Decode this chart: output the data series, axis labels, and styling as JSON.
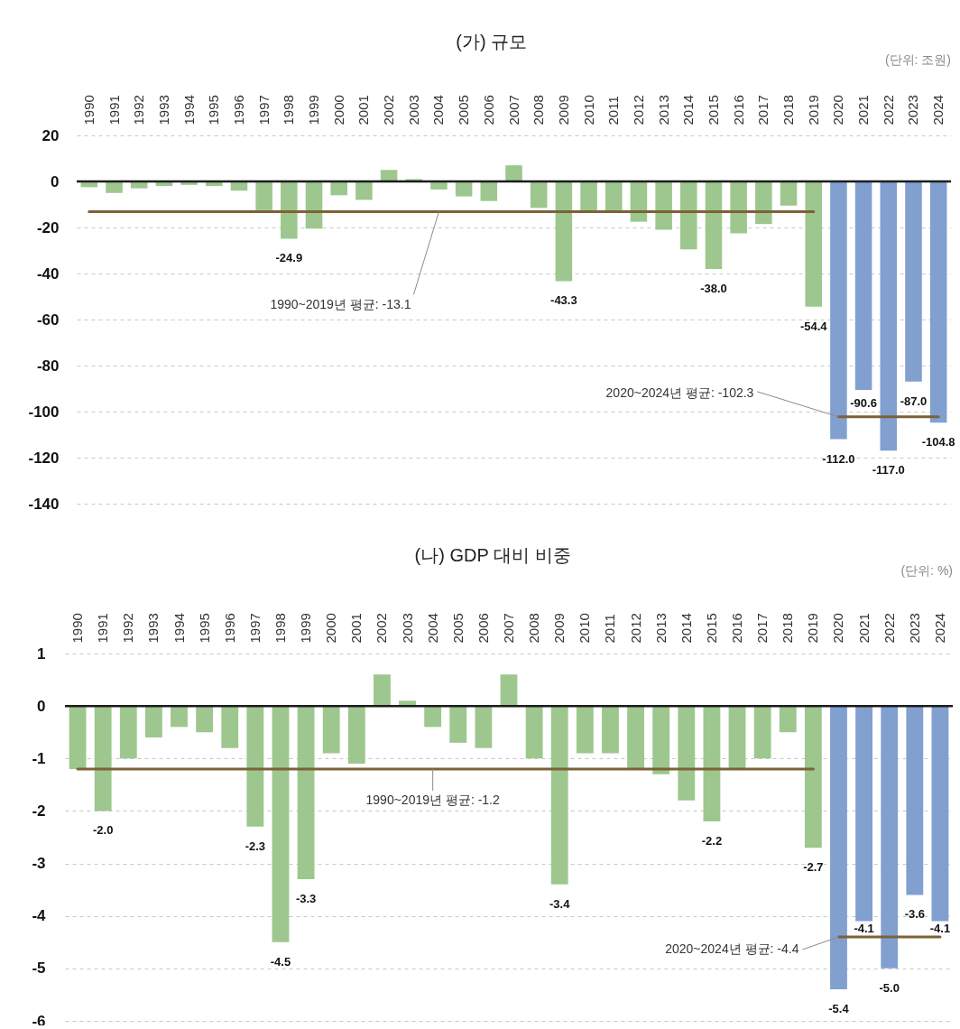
{
  "chart_data": [
    {
      "type": "bar",
      "title": "(가) 규모",
      "subtitle": "(단위: 조원)",
      "categories": [
        "1990",
        "1991",
        "1992",
        "1993",
        "1994",
        "1995",
        "1996",
        "1997",
        "1998",
        "1999",
        "2000",
        "2001",
        "2002",
        "2003",
        "2004",
        "2005",
        "2006",
        "2007",
        "2008",
        "2009",
        "2010",
        "2011",
        "2012",
        "2013",
        "2014",
        "2015",
        "2016",
        "2017",
        "2018",
        "2019",
        "2020",
        "2021",
        "2022",
        "2023",
        "2024"
      ],
      "series": [
        {
          "values": [
            -2.5,
            -5,
            -3,
            -2,
            -1.5,
            -2,
            -4,
            -12.5,
            -24.9,
            -20.5,
            -6,
            -8,
            5,
            1,
            -3.5,
            -6.5,
            -8.5,
            7,
            -11.5,
            -43.3,
            -13,
            -13,
            -17.5,
            -21,
            -29.5,
            -38.0,
            -22.5,
            -18.5,
            -10.5,
            -54.4,
            -112.0,
            -90.6,
            -117.0,
            -87.0,
            -104.8
          ],
          "colors": [
            "#9dc78e",
            "#9dc78e",
            "#9dc78e",
            "#9dc78e",
            "#9dc78e",
            "#9dc78e",
            "#9dc78e",
            "#9dc78e",
            "#9dc78e",
            "#9dc78e",
            "#9dc78e",
            "#9dc78e",
            "#9dc78e",
            "#9dc78e",
            "#9dc78e",
            "#9dc78e",
            "#9dc78e",
            "#9dc78e",
            "#9dc78e",
            "#9dc78e",
            "#9dc78e",
            "#9dc78e",
            "#9dc78e",
            "#9dc78e",
            "#9dc78e",
            "#9dc78e",
            "#9dc78e",
            "#9dc78e",
            "#9dc78e",
            "#9dc78e",
            "#81a0d0",
            "#81a0d0",
            "#81a0d0",
            "#81a0d0",
            "#81a0d0"
          ],
          "value_labels": [
            null,
            null,
            null,
            null,
            null,
            null,
            null,
            null,
            "-24.9",
            null,
            null,
            null,
            null,
            null,
            null,
            null,
            null,
            null,
            null,
            "-43.3",
            null,
            null,
            null,
            null,
            null,
            "-38.0",
            null,
            null,
            null,
            "-54.4",
            "-112.0",
            "-90.6",
            "-117.0",
            "-87.0",
            "-104.8"
          ]
        },
        {
          "type": "line",
          "values": [
            -13.1,
            -13.1,
            -13.1,
            -13.1,
            -13.1,
            -13.1,
            -13.1,
            -13.1,
            -13.1,
            -13.1,
            -13.1,
            -13.1,
            -13.1,
            -13.1,
            -13.1,
            -13.1,
            -13.1,
            -13.1,
            -13.1,
            -13.1,
            -13.1,
            -13.1,
            -13.1,
            -13.1,
            -13.1,
            -13.1,
            -13.1,
            -13.1,
            -13.1,
            -13.1,
            null,
            null,
            null,
            null,
            null
          ],
          "color": "#7c6236"
        },
        {
          "type": "line",
          "values": [
            null,
            null,
            null,
            null,
            null,
            null,
            null,
            null,
            null,
            null,
            null,
            null,
            null,
            null,
            null,
            null,
            null,
            null,
            null,
            null,
            null,
            null,
            null,
            null,
            null,
            null,
            null,
            null,
            null,
            null,
            -102.3,
            -102.3,
            -102.3,
            -102.3,
            -102.3
          ],
          "color": "#7c6236"
        }
      ],
      "ylim": [
        -140,
        20
      ],
      "yticks": [
        -140,
        -120,
        -100,
        -80,
        -60,
        -40,
        -20,
        0,
        20
      ],
      "grid": "y",
      "ref_lines": [
        {
          "axis": "y",
          "value": 0,
          "color": "#1c1c1c"
        }
      ],
      "annotations": [
        {
          "text": "1990~2019년 평균: -13.1",
          "x": "2004",
          "y": -13.1
        },
        {
          "text": "2020~2024년 평균: -102.3",
          "x": "2020",
          "y": -102.3
        }
      ]
    },
    {
      "type": "bar",
      "title": "(나) GDP 대비 비중",
      "subtitle": "(단위: %)",
      "categories": [
        "1990",
        "1991",
        "1992",
        "1993",
        "1994",
        "1995",
        "1996",
        "1997",
        "1998",
        "1999",
        "2000",
        "2001",
        "2002",
        "2003",
        "2004",
        "2005",
        "2006",
        "2007",
        "2008",
        "2009",
        "2010",
        "2011",
        "2012",
        "2013",
        "2014",
        "2015",
        "2016",
        "2017",
        "2018",
        "2019",
        "2020",
        "2021",
        "2022",
        "2023",
        "2024"
      ],
      "series": [
        {
          "values": [
            -1.2,
            -2.0,
            -1.0,
            -0.6,
            -0.4,
            -0.5,
            -0.8,
            -2.3,
            -4.5,
            -3.3,
            -0.9,
            -1.1,
            0.6,
            0.1,
            -0.4,
            -0.7,
            -0.8,
            0.6,
            -1.0,
            -3.4,
            -0.9,
            -0.9,
            -1.2,
            -1.3,
            -1.8,
            -2.2,
            -1.2,
            -1.0,
            -0.5,
            -2.7,
            -5.4,
            -4.1,
            -5.0,
            -3.6,
            -4.1
          ],
          "colors": [
            "#9dc78e",
            "#9dc78e",
            "#9dc78e",
            "#9dc78e",
            "#9dc78e",
            "#9dc78e",
            "#9dc78e",
            "#9dc78e",
            "#9dc78e",
            "#9dc78e",
            "#9dc78e",
            "#9dc78e",
            "#9dc78e",
            "#9dc78e",
            "#9dc78e",
            "#9dc78e",
            "#9dc78e",
            "#9dc78e",
            "#9dc78e",
            "#9dc78e",
            "#9dc78e",
            "#9dc78e",
            "#9dc78e",
            "#9dc78e",
            "#9dc78e",
            "#9dc78e",
            "#9dc78e",
            "#9dc78e",
            "#9dc78e",
            "#9dc78e",
            "#81a0d0",
            "#81a0d0",
            "#81a0d0",
            "#81a0d0",
            "#81a0d0"
          ],
          "value_labels": [
            null,
            "-2.0",
            null,
            null,
            null,
            null,
            null,
            "-2.3",
            "-4.5",
            "-3.3",
            null,
            null,
            null,
            null,
            null,
            null,
            null,
            null,
            null,
            "-3.4",
            null,
            null,
            null,
            null,
            null,
            "-2.2",
            null,
            null,
            null,
            "-2.7",
            "-5.4",
            "-4.1",
            "-5.0",
            "-3.6",
            "-4.1"
          ]
        },
        {
          "type": "line",
          "values": [
            -1.2,
            -1.2,
            -1.2,
            -1.2,
            -1.2,
            -1.2,
            -1.2,
            -1.2,
            -1.2,
            -1.2,
            -1.2,
            -1.2,
            -1.2,
            -1.2,
            -1.2,
            -1.2,
            -1.2,
            -1.2,
            -1.2,
            -1.2,
            -1.2,
            -1.2,
            -1.2,
            -1.2,
            -1.2,
            -1.2,
            -1.2,
            -1.2,
            -1.2,
            -1.2,
            null,
            null,
            null,
            null,
            null
          ],
          "color": "#7c6236"
        },
        {
          "type": "line",
          "values": [
            null,
            null,
            null,
            null,
            null,
            null,
            null,
            null,
            null,
            null,
            null,
            null,
            null,
            null,
            null,
            null,
            null,
            null,
            null,
            null,
            null,
            null,
            null,
            null,
            null,
            null,
            null,
            null,
            null,
            null,
            -4.4,
            -4.4,
            -4.4,
            -4.4,
            -4.4
          ],
          "color": "#7c6236"
        }
      ],
      "ylim": [
        -6,
        1
      ],
      "yticks": [
        -6,
        -5,
        -4,
        -3,
        -2,
        -1,
        0,
        1
      ],
      "grid": "y",
      "ref_lines": [
        {
          "axis": "y",
          "value": 0,
          "color": "#1c1c1c"
        }
      ],
      "annotations": [
        {
          "text": "1990~2019년 평균: -1.2",
          "x": "2004",
          "y": -1.2
        },
        {
          "text": "2020~2024년 평균: -4.4",
          "x": "2020",
          "y": -4.4
        }
      ]
    }
  ]
}
